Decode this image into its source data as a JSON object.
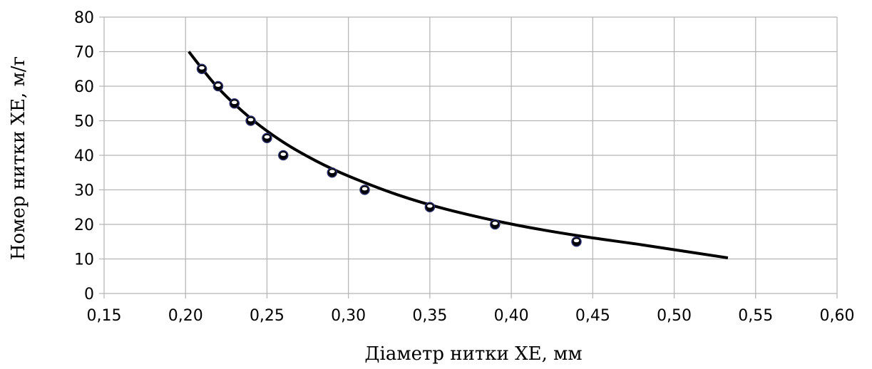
{
  "chart_data": {
    "type": "scatter",
    "title": "",
    "xlabel": "Діаметр нитки ХЕ, мм",
    "ylabel": "Номер нитки ХЕ, м/г",
    "xlim": [
      0.15,
      0.6
    ],
    "ylim": [
      0,
      80
    ],
    "x_ticks": [
      0.15,
      0.2,
      0.25,
      0.3,
      0.35,
      0.4,
      0.45,
      0.5,
      0.55,
      0.6
    ],
    "x_tick_labels": [
      "0,15",
      "0,20",
      "0,25",
      "0,30",
      "0,35",
      "0,40",
      "0,45",
      "0,50",
      "0,55",
      "0,60"
    ],
    "y_ticks": [
      0,
      10,
      20,
      30,
      40,
      50,
      60,
      70,
      80
    ],
    "y_tick_labels": [
      "0",
      "10",
      "20",
      "30",
      "40",
      "50",
      "60",
      "70",
      "80"
    ],
    "grid": true,
    "legend": false,
    "colors": {
      "grid": "#b3b3b3",
      "curve": "#000000",
      "marker_fill": "#000000",
      "marker_ring": "#2a2f6b"
    },
    "series": [
      {
        "kind": "points",
        "x": [
          0.21,
          0.22,
          0.23,
          0.24,
          0.25,
          0.26,
          0.29,
          0.31,
          0.35,
          0.39,
          0.44
        ],
        "y": [
          65,
          60,
          55,
          50,
          45,
          40,
          35,
          30,
          25,
          20,
          15
        ]
      },
      {
        "kind": "trend-line",
        "x_range": [
          0.202,
          0.533
        ],
        "x": [
          0.202,
          0.22,
          0.24,
          0.26,
          0.28,
          0.3,
          0.33,
          0.36,
          0.4,
          0.44,
          0.48,
          0.533
        ],
        "y": [
          70,
          59.5,
          50.7,
          43.8,
          38.4,
          34.0,
          28.6,
          24.4,
          20.1,
          16.8,
          14.1,
          10.3
        ]
      }
    ]
  }
}
